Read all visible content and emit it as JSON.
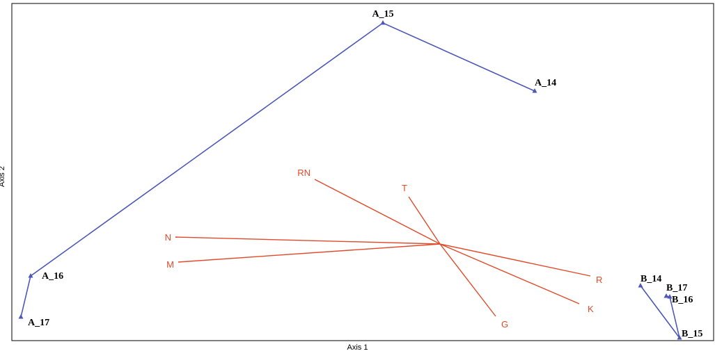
{
  "chart_data": {
    "type": "scatter",
    "xlabel": "Axis 1",
    "ylabel": "Axis 2",
    "grid": false,
    "legend": "none",
    "series": [
      {
        "name": "A",
        "color": "#4c57b8",
        "connected": true,
        "points": [
          {
            "label": "A_17",
            "x": 30,
            "y": 456
          },
          {
            "label": "A_16",
            "x": 44,
            "y": 397
          },
          {
            "label": "A_15",
            "x": 550,
            "y": 33
          },
          {
            "label": "A_14",
            "x": 768,
            "y": 131
          }
        ]
      },
      {
        "name": "B",
        "color": "#4c57b8",
        "connected": true,
        "points": [
          {
            "label": "B_14",
            "x": 920,
            "y": 411
          },
          {
            "label": "B_15",
            "x": 976,
            "y": 486
          },
          {
            "label": "B_16",
            "x": 962,
            "y": 427
          },
          {
            "label": "B_17",
            "x": 957,
            "y": 426
          }
        ]
      }
    ],
    "vectors": {
      "color": "#e04a2a",
      "origin": {
        "x": 632,
        "y": 351
      },
      "items": [
        {
          "label": "RN",
          "x": 452,
          "y": 258
        },
        {
          "label": "T",
          "x": 587,
          "y": 283
        },
        {
          "label": "N",
          "x": 252,
          "y": 341
        },
        {
          "label": "M",
          "x": 256,
          "y": 377
        },
        {
          "label": "R",
          "x": 848,
          "y": 397
        },
        {
          "label": "K",
          "x": 832,
          "y": 437
        },
        {
          "label": "G",
          "x": 712,
          "y": 455
        }
      ]
    }
  }
}
